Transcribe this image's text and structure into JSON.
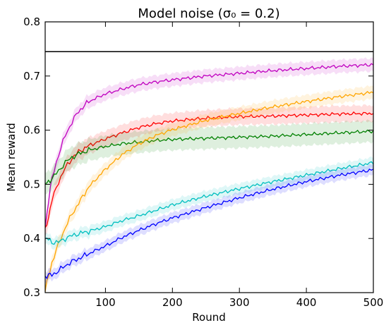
{
  "chart_data": {
    "type": "line",
    "title": "Model noise (σ₀ = 0.2)",
    "xlabel": "Round",
    "ylabel": "Mean reward",
    "xlim": [
      10,
      500
    ],
    "ylim": [
      0.3,
      0.8
    ],
    "xticks": [
      100,
      200,
      300,
      400,
      500
    ],
    "yticks": [
      0.3,
      0.4,
      0.5,
      0.6,
      0.7,
      0.8
    ],
    "xtick_labels": [
      "100",
      "200",
      "300",
      "400",
      "500"
    ],
    "ytick_labels": [
      "0.3",
      "0.4",
      "0.5",
      "0.6",
      "0.7",
      "0.8"
    ],
    "legend": "none",
    "grid": false,
    "reference_line": {
      "y": 0.745,
      "color": "#000000"
    },
    "x": [
      10,
      15,
      20,
      30,
      40,
      50,
      60,
      75,
      100,
      125,
      150,
      175,
      200,
      250,
      300,
      350,
      400,
      450,
      500
    ],
    "series": [
      {
        "color": "#bf00bf",
        "band": 0.012,
        "values": [
          0.42,
          0.47,
          0.51,
          0.555,
          0.59,
          0.615,
          0.635,
          0.653,
          0.667,
          0.676,
          0.684,
          0.689,
          0.693,
          0.7,
          0.705,
          0.71,
          0.714,
          0.718,
          0.721
        ]
      },
      {
        "color": "#ff0000",
        "band": 0.015,
        "values": [
          0.415,
          0.44,
          0.47,
          0.505,
          0.53,
          0.548,
          0.56,
          0.571,
          0.584,
          0.595,
          0.605,
          0.612,
          0.617,
          0.622,
          0.625,
          0.626,
          0.628,
          0.63,
          0.631
        ]
      },
      {
        "color": "#008000",
        "band": 0.02,
        "values": [
          0.5,
          0.505,
          0.51,
          0.525,
          0.54,
          0.55,
          0.556,
          0.563,
          0.57,
          0.575,
          0.578,
          0.581,
          0.583,
          0.585,
          0.587,
          0.589,
          0.592,
          0.595,
          0.598
        ]
      },
      {
        "color": "#ffa500",
        "band": 0.012,
        "values": [
          0.305,
          0.33,
          0.355,
          0.39,
          0.42,
          0.445,
          0.465,
          0.495,
          0.528,
          0.555,
          0.575,
          0.59,
          0.601,
          0.618,
          0.631,
          0.643,
          0.653,
          0.662,
          0.67
        ]
      },
      {
        "color": "#00bfbf",
        "band": 0.01,
        "values": [
          0.4,
          0.398,
          0.393,
          0.393,
          0.4,
          0.405,
          0.409,
          0.413,
          0.422,
          0.433,
          0.442,
          0.452,
          0.462,
          0.478,
          0.492,
          0.505,
          0.517,
          0.529,
          0.54
        ]
      },
      {
        "color": "#0000ff",
        "band": 0.01,
        "values": [
          0.33,
          0.332,
          0.333,
          0.34,
          0.35,
          0.357,
          0.363,
          0.372,
          0.386,
          0.402,
          0.415,
          0.427,
          0.438,
          0.457,
          0.475,
          0.491,
          0.505,
          0.517,
          0.527
        ]
      }
    ]
  }
}
